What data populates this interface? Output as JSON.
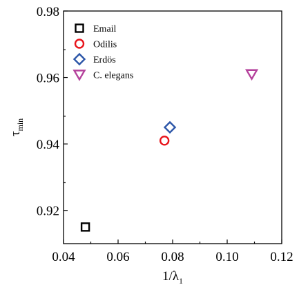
{
  "chart_data": {
    "type": "scatter",
    "title": "",
    "xlabel": {
      "main": "1/λ",
      "sub": "1"
    },
    "ylabel": {
      "main": "τ",
      "sub": "min"
    },
    "xlim": [
      0.04,
      0.12
    ],
    "ylim": [
      0.91,
      0.98
    ],
    "xticks": [
      "0.04",
      "0.06",
      "0.08",
      "0.10",
      "0.12"
    ],
    "yticks": [
      "0.92",
      "0.94",
      "0.96",
      "0.98"
    ],
    "grid": false,
    "legend_position": "top-left",
    "series": [
      {
        "name": "Email",
        "marker": "square",
        "color": "#000000",
        "x": [
          0.048
        ],
        "y": [
          0.915
        ]
      },
      {
        "name": "Odilis",
        "marker": "circle",
        "color": "#e8131a",
        "x": [
          0.077
        ],
        "y": [
          0.941
        ]
      },
      {
        "name": "Erdös",
        "marker": "diamond",
        "color": "#2c56a8",
        "x": [
          0.079
        ],
        "y": [
          0.945
        ]
      },
      {
        "name": "C. elegans",
        "marker": "triangle-down",
        "color": "#b5429c",
        "x": [
          0.109
        ],
        "y": [
          0.961
        ]
      }
    ]
  }
}
